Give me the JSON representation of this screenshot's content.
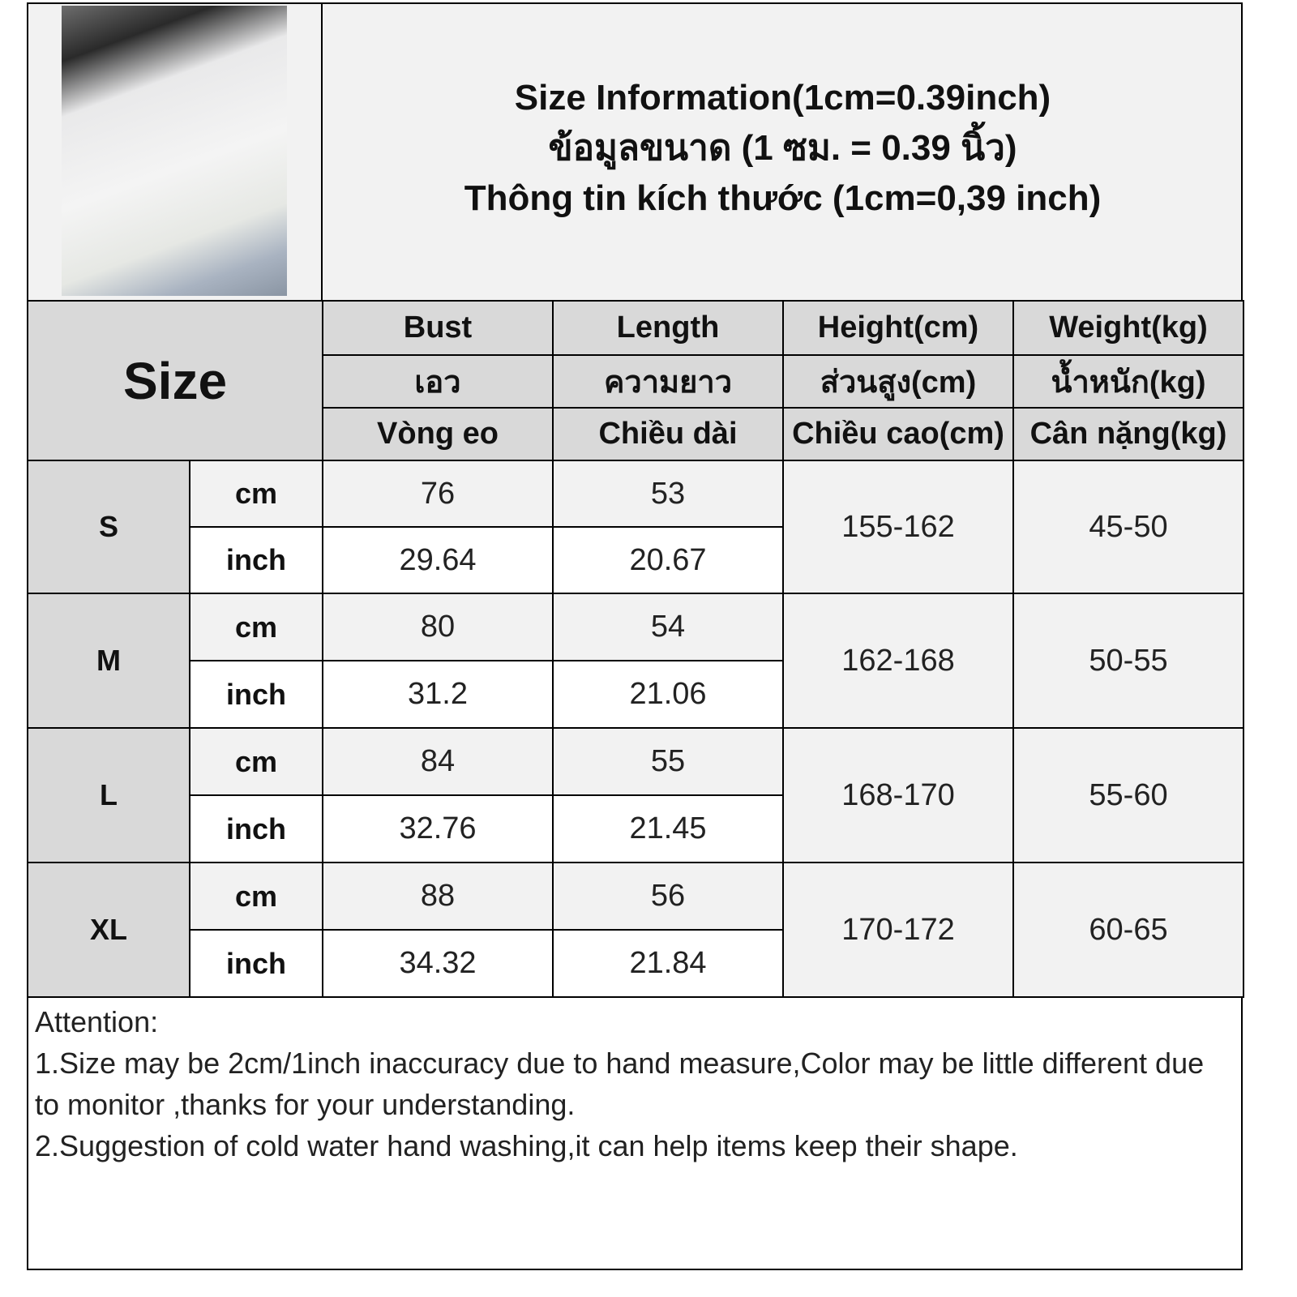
{
  "title": {
    "lines": [
      "Size Information(1cm=0.39inch)",
      "ข้อมูลขนาด (1 ซม. = 0.39 นิ้ว)",
      "Thông tin kích thước (1cm=0,39 inch)"
    ]
  },
  "table": {
    "size_label": "Size",
    "columns": [
      {
        "en": "Bust",
        "th": "เอว",
        "vi": "Vòng eo"
      },
      {
        "en": "Length",
        "th": "ความยาว",
        "vi": "Chiều dài"
      },
      {
        "en": "Height(cm)",
        "th": "ส่วนสูง(cm)",
        "vi": "Chiều cao(cm)"
      },
      {
        "en": "Weight(kg)",
        "th": "น้ำหนัก(kg)",
        "vi": "Cân nặng(kg)"
      }
    ],
    "units": {
      "cm": "cm",
      "inch": "inch"
    },
    "rows": [
      {
        "size": "S",
        "cm": [
          "76",
          "53"
        ],
        "inch": [
          "29.64",
          "20.67"
        ],
        "height": "155-162",
        "weight": "45-50"
      },
      {
        "size": "M",
        "cm": [
          "80",
          "54"
        ],
        "inch": [
          "31.2",
          "21.06"
        ],
        "height": "162-168",
        "weight": "50-55"
      },
      {
        "size": "L",
        "cm": [
          "84",
          "55"
        ],
        "inch": [
          "32.76",
          "21.45"
        ],
        "height": "168-170",
        "weight": "55-60"
      },
      {
        "size": "XL",
        "cm": [
          "88",
          "56"
        ],
        "inch": [
          "34.32",
          "21.84"
        ],
        "height": "170-172",
        "weight": "60-65"
      }
    ]
  },
  "notes": {
    "heading": "Attention:",
    "lines": [
      "1.Size may be 2cm/1inch inaccuracy due to hand measure,Color may be little different due to monitor ,thanks for your understanding.",
      "2.Suggestion of cold water hand washing,it can help items keep their shape."
    ]
  }
}
